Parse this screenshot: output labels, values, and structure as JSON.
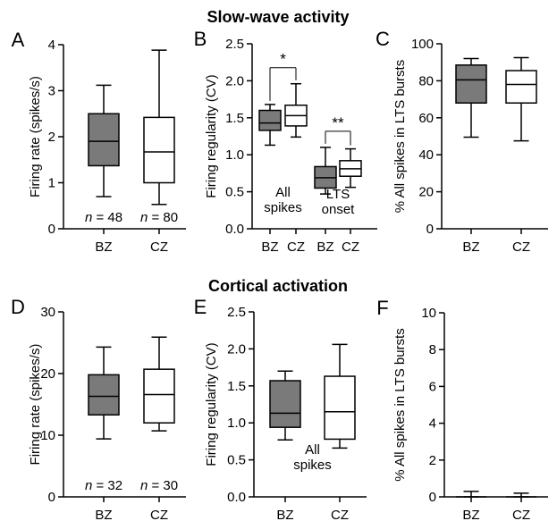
{
  "sections": [
    {
      "title": "Slow-wave activity"
    },
    {
      "title": "Cortical activation"
    }
  ],
  "colors": {
    "bz_fill": "#7a7a7a",
    "cz_fill": "#ffffff",
    "stroke": "#000000"
  },
  "chart_data": [
    {
      "type": "box",
      "panel_label": "A",
      "section": "Slow-wave activity",
      "ylabel": "Firing rate (spikes/s)",
      "xlabel": "",
      "ylim": [
        0,
        4
      ],
      "yticks": [
        0,
        1,
        2,
        3,
        4
      ],
      "categories": [
        "BZ",
        "CZ"
      ],
      "boxes": [
        {
          "category": "BZ",
          "group": "BZ",
          "whisker_low": 0.7,
          "q1": 1.37,
          "median": 1.9,
          "q3": 2.5,
          "whisker_high": 3.12
        },
        {
          "category": "CZ",
          "group": "CZ",
          "whisker_low": 0.53,
          "q1": 1.0,
          "median": 1.67,
          "q3": 2.42,
          "whisker_high": 3.88
        }
      ],
      "annotations": [
        {
          "prefix": "n",
          "text": " = 48",
          "category": "BZ"
        },
        {
          "prefix": "n",
          "text": " = 80",
          "category": "CZ"
        }
      ]
    },
    {
      "type": "box",
      "panel_label": "B",
      "section": "Slow-wave activity",
      "ylabel": "Firing regularity (CV)",
      "xlabel": "",
      "ylim": [
        0,
        2.5
      ],
      "yticks": [
        0.0,
        0.5,
        1.0,
        1.5,
        2.0,
        2.5
      ],
      "categories": [
        "BZ",
        "CZ",
        "BZ",
        "CZ"
      ],
      "boxes": [
        {
          "category": "BZ",
          "group": "BZ",
          "whisker_low": 1.13,
          "q1": 1.33,
          "median": 1.43,
          "q3": 1.6,
          "whisker_high": 1.68
        },
        {
          "category": "CZ",
          "group": "CZ",
          "whisker_low": 1.24,
          "q1": 1.39,
          "median": 1.53,
          "q3": 1.67,
          "whisker_high": 1.96
        },
        {
          "category": "BZ",
          "group": "BZ",
          "whisker_low": 0.47,
          "q1": 0.55,
          "median": 0.69,
          "q3": 0.84,
          "whisker_high": 1.1
        },
        {
          "category": "CZ",
          "group": "CZ",
          "whisker_low": 0.56,
          "q1": 0.71,
          "median": 0.81,
          "q3": 0.92,
          "whisker_high": 1.08
        }
      ],
      "group_labels": [
        {
          "lines": [
            "All",
            "spikes"
          ]
        },
        {
          "lines": [
            "LTS",
            "onset"
          ]
        }
      ],
      "significance": [
        {
          "text": "*",
          "left_box": 0,
          "right_box": 1
        },
        {
          "text": "**",
          "left_box": 2,
          "right_box": 3
        }
      ]
    },
    {
      "type": "box",
      "panel_label": "C",
      "section": "Slow-wave activity",
      "ylabel": "% All spikes in LTS bursts",
      "xlabel": "",
      "ylim": [
        0,
        100
      ],
      "yticks": [
        0,
        20,
        40,
        60,
        80,
        100
      ],
      "categories": [
        "BZ",
        "CZ"
      ],
      "boxes": [
        {
          "category": "BZ",
          "group": "BZ",
          "whisker_low": 49.5,
          "q1": 68,
          "median": 80.5,
          "q3": 88.5,
          "whisker_high": 92
        },
        {
          "category": "CZ",
          "group": "CZ",
          "whisker_low": 47.5,
          "q1": 68,
          "median": 78,
          "q3": 85.5,
          "whisker_high": 92.5
        }
      ]
    },
    {
      "type": "box",
      "panel_label": "D",
      "section": "Cortical activation",
      "ylabel": "Firing rate (spikes/s)",
      "xlabel": "",
      "ylim": [
        0,
        30
      ],
      "yticks": [
        0,
        10,
        20,
        30
      ],
      "categories": [
        "BZ",
        "CZ"
      ],
      "boxes": [
        {
          "category": "BZ",
          "group": "BZ",
          "whisker_low": 9.4,
          "q1": 13.3,
          "median": 16.3,
          "q3": 19.8,
          "whisker_high": 24.3
        },
        {
          "category": "CZ",
          "group": "CZ",
          "whisker_low": 10.7,
          "q1": 12.0,
          "median": 16.6,
          "q3": 20.7,
          "whisker_high": 25.9
        }
      ],
      "annotations": [
        {
          "prefix": "n",
          "text": " = 32",
          "category": "BZ"
        },
        {
          "prefix": "n",
          "text": " = 30",
          "category": "CZ"
        }
      ]
    },
    {
      "type": "box",
      "panel_label": "E",
      "section": "Cortical activation",
      "ylabel": "Firing regularity (CV)",
      "xlabel": "",
      "ylim": [
        0,
        2.5
      ],
      "yticks": [
        0.0,
        0.5,
        1.0,
        1.5,
        2.0,
        2.5
      ],
      "categories": [
        "BZ",
        "CZ"
      ],
      "boxes": [
        {
          "category": "BZ",
          "group": "BZ",
          "whisker_low": 0.77,
          "q1": 0.94,
          "median": 1.13,
          "q3": 1.57,
          "whisker_high": 1.7
        },
        {
          "category": "CZ",
          "group": "CZ",
          "whisker_low": 0.66,
          "q1": 0.78,
          "median": 1.15,
          "q3": 1.63,
          "whisker_high": 2.06
        }
      ],
      "group_labels": [
        {
          "lines": [
            "All",
            "spikes"
          ]
        }
      ]
    },
    {
      "type": "box",
      "panel_label": "F",
      "section": "Cortical activation",
      "ylabel": "% All spikes in LTS bursts",
      "xlabel": "",
      "ylim": [
        0,
        10
      ],
      "yticks": [
        0,
        2,
        4,
        6,
        8,
        10
      ],
      "categories": [
        "BZ",
        "CZ"
      ],
      "boxes": [
        {
          "category": "BZ",
          "group": "BZ",
          "whisker_low": 0,
          "q1": 0,
          "median": 0,
          "q3": 0,
          "whisker_high": 0.3
        },
        {
          "category": "CZ",
          "group": "CZ",
          "whisker_low": 0,
          "q1": 0,
          "median": 0,
          "q3": 0,
          "whisker_high": 0.2
        }
      ]
    }
  ]
}
